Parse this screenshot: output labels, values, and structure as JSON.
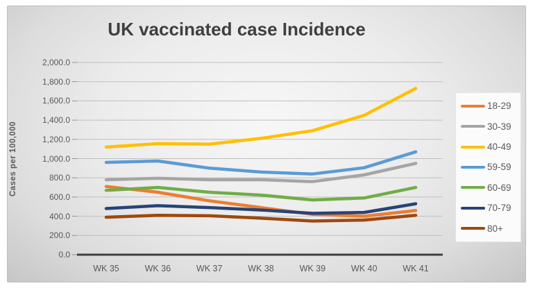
{
  "chart_data": {
    "type": "line",
    "title": "UK vaccinated case Incidence",
    "xlabel": "",
    "ylabel": "Cases per 100,000",
    "categories": [
      "WK 35",
      "WK 36",
      "WK 37",
      "WK 38",
      "WK 39",
      "WK 40",
      "WK 41"
    ],
    "series": [
      {
        "name": "18-29",
        "color": "#ED7D31",
        "values": [
          710,
          650,
          560,
          490,
          420,
          400,
          460
        ]
      },
      {
        "name": "30-39",
        "color": "#A5A5A5",
        "values": [
          780,
          795,
          780,
          780,
          760,
          830,
          950
        ]
      },
      {
        "name": "40-49",
        "color": "#FFC000",
        "values": [
          1120,
          1155,
          1150,
          1210,
          1290,
          1450,
          1730
        ]
      },
      {
        "name": "59-59",
        "color": "#5B9BD5",
        "values": [
          960,
          975,
          900,
          860,
          840,
          905,
          1070
        ]
      },
      {
        "name": "60-69",
        "color": "#70AD47",
        "values": [
          670,
          700,
          650,
          620,
          570,
          590,
          700
        ]
      },
      {
        "name": "70-79",
        "color": "#264478",
        "values": [
          480,
          510,
          490,
          465,
          430,
          440,
          530
        ]
      },
      {
        "name": "80+",
        "color": "#9E480E",
        "values": [
          390,
          410,
          405,
          380,
          350,
          360,
          410
        ]
      }
    ],
    "ylim": [
      0,
      2000
    ],
    "ytick_step": 200,
    "ytick_labels": [
      "0.0",
      "200.0",
      "400.0",
      "600.0",
      "800.0",
      "1,000.0",
      "1,200.0",
      "1,400.0",
      "1,600.0",
      "1,800.0",
      "2,000.0"
    ],
    "grid": true,
    "legend_position": "right",
    "colors": {
      "gridline": "#bfbfbf",
      "axis_line": "#3f3f3f",
      "tick_text": "#595959",
      "title_text": "#3f3f3f"
    }
  }
}
